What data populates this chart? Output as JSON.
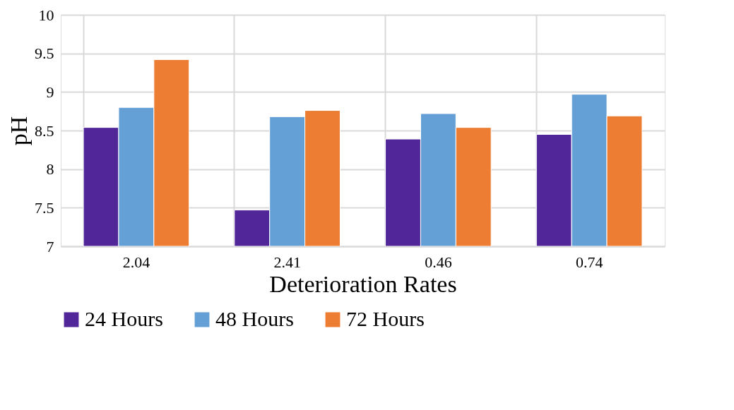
{
  "chart_data": {
    "type": "bar",
    "xlabel": "Deterioration Rates",
    "ylabel": "pH",
    "categories": [
      "2.04",
      "2.41",
      "0.46",
      "0.74"
    ],
    "series": [
      {
        "name": "24 Hours",
        "color": "#512698",
        "values": [
          8.54,
          7.47,
          8.39,
          8.45
        ]
      },
      {
        "name": "48 Hours",
        "color": "#64a0d6",
        "values": [
          8.8,
          8.68,
          8.72,
          8.97
        ]
      },
      {
        "name": "72 Hours",
        "color": "#ed7d32",
        "values": [
          9.42,
          8.76,
          8.54,
          8.69
        ]
      }
    ],
    "ylim": [
      7,
      10
    ],
    "yticks": [
      7,
      7.5,
      8,
      8.5,
      9,
      9.5,
      10
    ],
    "grid": true,
    "legend": "bottom"
  }
}
